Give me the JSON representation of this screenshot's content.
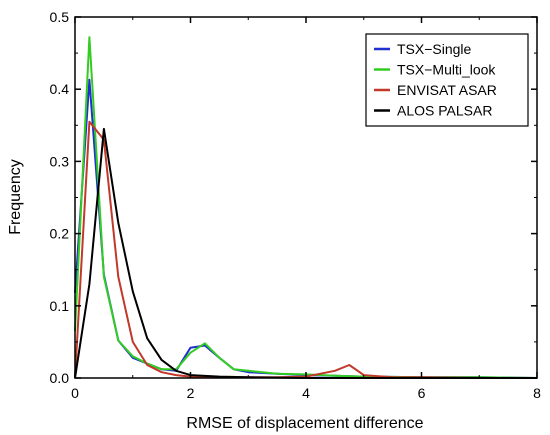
{
  "chart_data": {
    "type": "line",
    "title": "",
    "xlabel": "RMSE of displacement difference",
    "ylabel": "Frequency",
    "xlim": [
      0,
      8
    ],
    "ylim": [
      0,
      0.5
    ],
    "xticks": [
      0,
      2,
      4,
      6,
      8
    ],
    "yticks": [
      0.0,
      0.1,
      0.2,
      0.3,
      0.4,
      0.5
    ],
    "ytick_labels": [
      "0.0",
      "0.1",
      "0.2",
      "0.3",
      "0.4",
      "0.5"
    ],
    "xtick_labels": [
      "0",
      "2",
      "4",
      "6",
      "8"
    ],
    "grid": false,
    "legend_position": "top-right",
    "series": [
      {
        "name": "TSX−Single",
        "color": "#1f2fd0",
        "x": [
          0,
          0.25,
          0.5,
          0.75,
          1.0,
          1.25,
          1.5,
          1.75,
          2.0,
          2.25,
          2.5,
          2.75,
          3.0,
          3.5,
          4.0,
          4.5,
          5.0,
          6.0,
          7.0,
          8.0
        ],
        "y": [
          0.118,
          0.413,
          0.143,
          0.052,
          0.028,
          0.02,
          0.012,
          0.01,
          0.042,
          0.045,
          0.028,
          0.012,
          0.008,
          0.006,
          0.004,
          0.003,
          0.002,
          0.001,
          0.001,
          0.0
        ]
      },
      {
        "name": "TSX−Multi_look",
        "color": "#33cc22",
        "x": [
          0,
          0.25,
          0.5,
          0.75,
          1.0,
          1.25,
          1.5,
          1.75,
          2.0,
          2.25,
          2.5,
          2.75,
          3.0,
          3.5,
          4.0,
          4.5,
          5.0,
          6.0,
          7.0,
          8.0
        ],
        "y": [
          0.065,
          0.472,
          0.14,
          0.052,
          0.03,
          0.02,
          0.012,
          0.012,
          0.035,
          0.048,
          0.028,
          0.012,
          0.01,
          0.006,
          0.005,
          0.003,
          0.002,
          0.001,
          0.001,
          0.0
        ]
      },
      {
        "name": "ENVISAT ASAR",
        "color": "#c0392b",
        "x": [
          0,
          0.25,
          0.5,
          0.75,
          1.0,
          1.25,
          1.5,
          1.75,
          2.0,
          2.5,
          3.0,
          3.5,
          4.0,
          4.5,
          4.75,
          5.0,
          5.5,
          6.0,
          7.0,
          8.0
        ],
        "y": [
          0.0,
          0.355,
          0.33,
          0.14,
          0.05,
          0.018,
          0.008,
          0.004,
          0.002,
          0.001,
          0.001,
          0.001,
          0.002,
          0.01,
          0.018,
          0.004,
          0.001,
          0.001,
          0.0,
          0.0
        ]
      },
      {
        "name": "ALOS PALSAR",
        "color": "#000000",
        "x": [
          0,
          0.25,
          0.5,
          0.75,
          1.0,
          1.25,
          1.5,
          1.75,
          2.0,
          2.5,
          3.0,
          4.0,
          5.0,
          6.0,
          7.0,
          8.0
        ],
        "y": [
          0.0,
          0.13,
          0.345,
          0.215,
          0.12,
          0.055,
          0.025,
          0.01,
          0.004,
          0.002,
          0.001,
          0.0,
          0.0,
          0.0,
          0.0,
          0.0
        ]
      }
    ]
  }
}
